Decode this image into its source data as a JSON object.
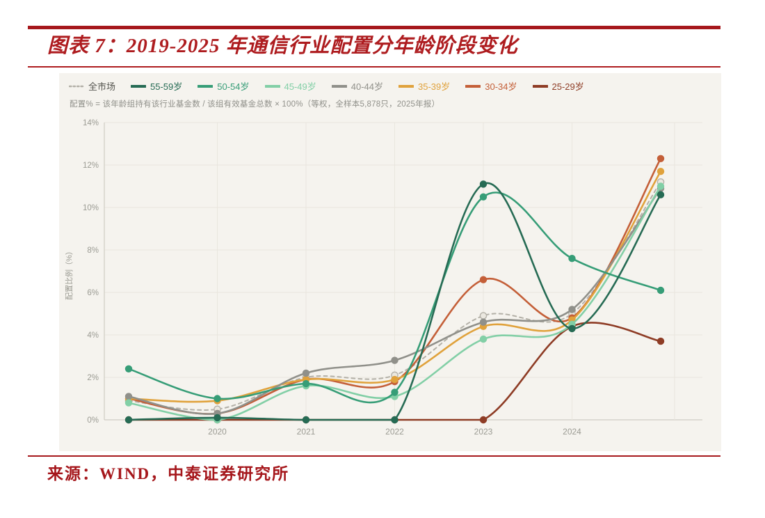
{
  "title": {
    "label": "图表 7：2019-2025 年通信行业配置分年龄阶段变化"
  },
  "source": {
    "label": "来源：WIND，中泰证券研究所"
  },
  "theme": {
    "accent_red": "#a6181c",
    "title_red": "#ae1c1f",
    "panel_bg": "#f5f3ee",
    "grid_color": "#e9e6de",
    "axis_color": "#cfccc4",
    "tick_text": "#9b9b93"
  },
  "chart_data": {
    "type": "line",
    "title": "",
    "subtitle": "配置% = 该年龄组持有该行业基金数 / 该组有效基金总数 × 100%（等权，全样本5,878只，2025年报）",
    "xlabel": "",
    "ylabel": "配置比例（%）",
    "x": [
      2019,
      2020,
      2021,
      2022,
      2023,
      2024,
      2025
    ],
    "x_tick_labels": [
      "2020",
      "2021",
      "2022",
      "2023",
      "2024"
    ],
    "x_tick_years": [
      2020,
      2021,
      2022,
      2023,
      2024
    ],
    "ylim": [
      0,
      14
    ],
    "ytick_values": [
      0,
      2,
      4,
      6,
      8,
      10,
      12,
      14
    ],
    "ytick_labels": [
      "0%",
      "2%",
      "4%",
      "6%",
      "8%",
      "10%",
      "12%",
      "14%"
    ],
    "grid": true,
    "legend_position": "top-left",
    "series": [
      {
        "name": "全市场",
        "color": "#b3b0a7",
        "label_color": "#55554f",
        "dashed": true,
        "values": [
          0.9,
          0.5,
          2.0,
          2.1,
          4.9,
          5.0,
          11.2
        ]
      },
      {
        "name": "55-59岁",
        "color": "#266b54",
        "dashed": false,
        "values": [
          0.0,
          0.1,
          0.0,
          0.0,
          11.1,
          4.3,
          10.6
        ]
      },
      {
        "name": "50-54岁",
        "color": "#369d77",
        "dashed": false,
        "values": [
          2.4,
          1.0,
          1.7,
          1.3,
          10.5,
          7.6,
          6.1
        ]
      },
      {
        "name": "45-49岁",
        "color": "#82cfa6",
        "dashed": false,
        "values": [
          0.8,
          0.0,
          1.6,
          1.1,
          3.8,
          4.5,
          11.0
        ]
      },
      {
        "name": "40-44岁",
        "color": "#90908a",
        "dashed": false,
        "values": [
          1.1,
          0.3,
          2.2,
          2.8,
          4.6,
          5.2,
          10.9
        ]
      },
      {
        "name": "35-39岁",
        "color": "#e0a23c",
        "dashed": false,
        "values": [
          1.0,
          0.9,
          1.9,
          1.9,
          4.4,
          4.7,
          11.7
        ]
      },
      {
        "name": "30-34岁",
        "color": "#c45f38",
        "dashed": false,
        "values": [
          1.0,
          0.3,
          1.9,
          1.8,
          6.6,
          4.8,
          12.3
        ]
      },
      {
        "name": "25-29岁",
        "color": "#8e3c25",
        "dashed": false,
        "values": [
          0.0,
          0.0,
          0.0,
          0.0,
          0.0,
          4.4,
          3.7
        ]
      }
    ]
  }
}
